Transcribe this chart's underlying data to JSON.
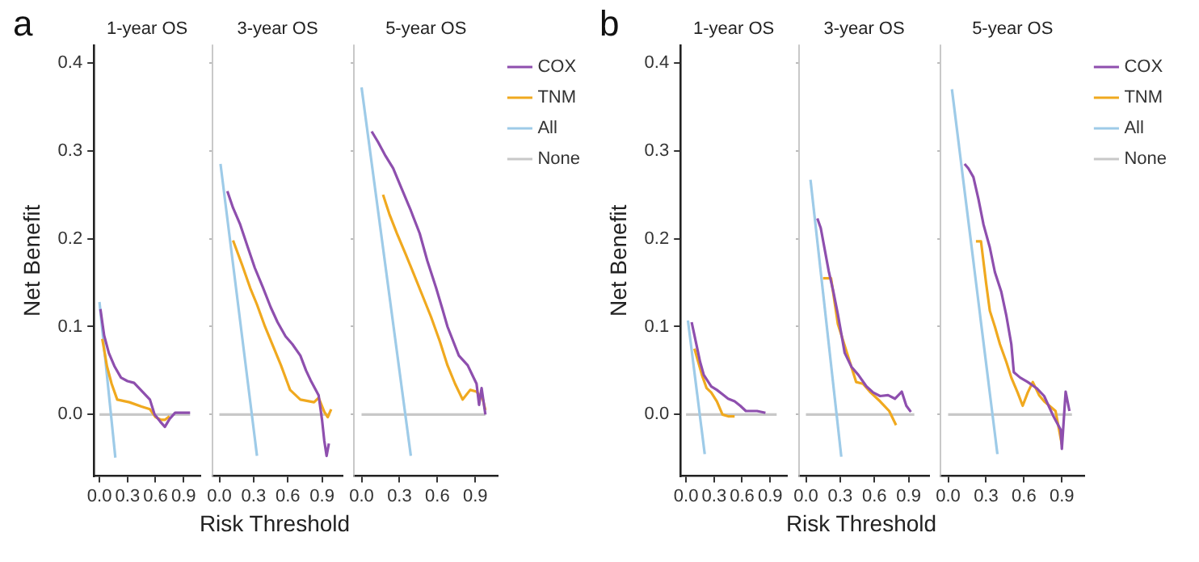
{
  "chart_data": [
    {
      "type": "line",
      "title": "1-year OS",
      "ylabel": "Net Benefit",
      "annotations": [
        "a"
      ],
      "xlim": [
        -0.06,
        1.08
      ],
      "ylim": [
        -0.07,
        0.42
      ],
      "xticks": [
        {
          "value": 0,
          "label": "0.0"
        },
        {
          "value": 0.3,
          "label": "0.3"
        },
        {
          "value": 0.6,
          "label": "0.6"
        },
        {
          "value": 0.9,
          "label": "0.9"
        }
      ],
      "yticks": [
        {
          "value": 0,
          "label": "0.0"
        },
        {
          "value": 0.1,
          "label": "0.1"
        },
        {
          "value": 0.2,
          "label": "0.2"
        },
        {
          "value": 0.3,
          "label": "0.3"
        },
        {
          "value": 0.4,
          "label": "0.4"
        }
      ],
      "grid": false,
      "legend": false,
      "series": [
        {
          "color": "#8e4fae",
          "x": [
            0.01,
            0.05,
            0.1,
            0.16,
            0.23,
            0.3,
            0.37,
            0.45,
            0.54,
            0.59,
            0.65,
            0.7,
            0.75,
            0.81,
            0.9,
            0.97
          ],
          "values": [
            0.12,
            0.09,
            0.07,
            0.055,
            0.042,
            0.038,
            0.036,
            0.027,
            0.017,
            0,
            -0.008,
            -0.014,
            -0.005,
            0.002,
            0.002,
            0.002
          ]
        },
        {
          "color": "#f0a91f",
          "x": [
            0.03,
            0.08,
            0.13,
            0.19,
            0.32,
            0.45,
            0.54,
            0.6,
            0.66,
            0.7,
            0.75
          ],
          "values": [
            0.086,
            0.055,
            0.035,
            0.017,
            0.014,
            0.009,
            0.006,
            -0.003,
            -0.006,
            -0.006,
            -0.002
          ]
        },
        {
          "color": "#9ecbe8",
          "x": [
            0,
            0.17
          ],
          "values": [
            0.128,
            -0.049
          ]
        },
        {
          "color": "#c8c8c8",
          "x": [
            0,
            0.97
          ],
          "values": [
            0,
            0
          ]
        }
      ]
    },
    {
      "type": "line",
      "title": "3-year OS",
      "xlabel": "Risk Threshold",
      "xlim": [
        -0.06,
        1.08
      ],
      "ylim": [
        -0.07,
        0.42
      ],
      "xticks": [
        {
          "value": 0,
          "label": "0.0"
        },
        {
          "value": 0.3,
          "label": "0.3"
        },
        {
          "value": 0.6,
          "label": "0.6"
        },
        {
          "value": 0.9,
          "label": "0.9"
        }
      ],
      "yticks": [
        0,
        0.1,
        0.2,
        0.3,
        0.4
      ],
      "grid": false,
      "legend": false,
      "tick_labels": "x",
      "series": [
        {
          "color": "#8e4fae",
          "x": [
            0.07,
            0.12,
            0.18,
            0.25,
            0.31,
            0.38,
            0.45,
            0.51,
            0.58,
            0.64,
            0.71,
            0.76,
            0.8,
            0.87,
            0.9,
            0.92,
            0.94,
            0.96
          ],
          "values": [
            0.254,
            0.235,
            0.217,
            0.19,
            0.167,
            0.145,
            0.122,
            0.105,
            0.089,
            0.08,
            0.067,
            0.05,
            0.039,
            0.022,
            -0.006,
            -0.03,
            -0.047,
            -0.033
          ]
        },
        {
          "color": "#f0a91f",
          "x": [
            0.12,
            0.2,
            0.27,
            0.33,
            0.4,
            0.47,
            0.54,
            0.6,
            0.62,
            0.71,
            0.83,
            0.87,
            0.92,
            0.95,
            0.98
          ],
          "values": [
            0.198,
            0.17,
            0.144,
            0.125,
            0.1,
            0.078,
            0.056,
            0.035,
            0.028,
            0.017,
            0.014,
            0.019,
            0.003,
            -0.003,
            0.006
          ]
        },
        {
          "color": "#9ecbe8",
          "x": [
            0.01,
            0.33
          ],
          "values": [
            0.285,
            -0.047
          ]
        },
        {
          "color": "#c8c8c8",
          "x": [
            0,
            0.97
          ],
          "values": [
            0,
            0
          ]
        }
      ]
    },
    {
      "type": "line",
      "title": "5-year OS",
      "xlim": [
        -0.06,
        1.08
      ],
      "ylim": [
        -0.07,
        0.42
      ],
      "xticks": [
        {
          "value": 0,
          "label": "0.0"
        },
        {
          "value": 0.3,
          "label": "0.3"
        },
        {
          "value": 0.6,
          "label": "0.6"
        },
        {
          "value": 0.9,
          "label": "0.9"
        }
      ],
      "yticks": [
        0,
        0.1,
        0.2,
        0.3,
        0.4
      ],
      "grid": false,
      "legend": "top right",
      "tick_labels": "x",
      "series": [
        {
          "name": "COX",
          "color": "#8e4fae",
          "x": [
            0.08,
            0.13,
            0.19,
            0.25,
            0.32,
            0.39,
            0.46,
            0.52,
            0.59,
            0.64,
            0.68,
            0.77,
            0.84,
            0.88,
            0.91,
            0.93,
            0.95,
            0.98
          ],
          "values": [
            0.322,
            0.31,
            0.294,
            0.28,
            0.256,
            0.232,
            0.206,
            0.175,
            0.144,
            0.12,
            0.1,
            0.067,
            0.056,
            0.044,
            0.035,
            0.011,
            0.03,
            0
          ]
        },
        {
          "name": "TNM",
          "color": "#f0a91f",
          "x": [
            0.17,
            0.22,
            0.28,
            0.35,
            0.41,
            0.48,
            0.55,
            0.62,
            0.68,
            0.74,
            0.8,
            0.86,
            0.91,
            0.96,
            0.98
          ],
          "values": [
            0.25,
            0.228,
            0.206,
            0.182,
            0.161,
            0.136,
            0.111,
            0.083,
            0.056,
            0.035,
            0.017,
            0.028,
            0.026,
            0.017,
            0.005
          ]
        },
        {
          "name": "All",
          "color": "#9ecbe8",
          "x": [
            0,
            0.39
          ],
          "values": [
            0.372,
            -0.047
          ]
        },
        {
          "name": "None",
          "color": "#c8c8c8",
          "x": [
            0,
            0.98
          ],
          "values": [
            0,
            0
          ]
        }
      ]
    },
    {
      "type": "line",
      "title": "1-year OS",
      "ylabel": "Net Benefit",
      "annotations": [
        "b"
      ],
      "xlim": [
        -0.06,
        1.08
      ],
      "ylim": [
        -0.07,
        0.42
      ],
      "xticks": [
        {
          "value": 0,
          "label": "0.0"
        },
        {
          "value": 0.3,
          "label": "0.3"
        },
        {
          "value": 0.6,
          "label": "0.6"
        },
        {
          "value": 0.9,
          "label": "0.9"
        }
      ],
      "yticks": [
        {
          "value": 0,
          "label": "0.0"
        },
        {
          "value": 0.1,
          "label": "0.1"
        },
        {
          "value": 0.2,
          "label": "0.2"
        },
        {
          "value": 0.3,
          "label": "0.3"
        },
        {
          "value": 0.4,
          "label": "0.4"
        }
      ],
      "grid": false,
      "legend": false,
      "series": [
        {
          "color": "#8e4fae",
          "x": [
            0.06,
            0.08,
            0.12,
            0.15,
            0.19,
            0.27,
            0.33,
            0.39,
            0.45,
            0.52,
            0.58,
            0.64,
            0.76,
            0.85
          ],
          "values": [
            0.105,
            0.095,
            0.075,
            0.06,
            0.045,
            0.032,
            0.028,
            0.023,
            0.018,
            0.015,
            0.01,
            0.004,
            0.004,
            0.002
          ]
        },
        {
          "color": "#f0a91f",
          "x": [
            0.09,
            0.13,
            0.17,
            0.22,
            0.27,
            0.33,
            0.39,
            0.45,
            0.52
          ],
          "values": [
            0.075,
            0.06,
            0.045,
            0.03,
            0.025,
            0.015,
            0,
            -0.002,
            -0.002
          ]
        },
        {
          "color": "#9ecbe8",
          "x": [
            0.02,
            0.2
          ],
          "values": [
            0.107,
            -0.045
          ]
        },
        {
          "color": "#c8c8c8",
          "x": [
            0,
            0.97
          ],
          "values": [
            0,
            0
          ]
        }
      ]
    },
    {
      "type": "line",
      "title": "3-year OS",
      "xlabel": "Risk Threshold",
      "xlim": [
        -0.06,
        1.08
      ],
      "ylim": [
        -0.07,
        0.42
      ],
      "xticks": [
        {
          "value": 0,
          "label": "0.0"
        },
        {
          "value": 0.3,
          "label": "0.3"
        },
        {
          "value": 0.6,
          "label": "0.6"
        },
        {
          "value": 0.9,
          "label": "0.9"
        }
      ],
      "yticks": [
        0,
        0.1,
        0.2,
        0.3,
        0.4
      ],
      "grid": false,
      "legend": false,
      "tick_labels": "x",
      "series": [
        {
          "color": "#8e4fae",
          "x": [
            0.1,
            0.13,
            0.2,
            0.24,
            0.28,
            0.34,
            0.4,
            0.46,
            0.53,
            0.59,
            0.65,
            0.72,
            0.78,
            0.84,
            0.88,
            0.92
          ],
          "values": [
            0.223,
            0.212,
            0.163,
            0.14,
            0.114,
            0.07,
            0.054,
            0.045,
            0.032,
            0.025,
            0.021,
            0.022,
            0.018,
            0.026,
            0.01,
            0.003
          ]
        },
        {
          "color": "#f0a91f",
          "x": [
            0.15,
            0.22,
            0.28,
            0.36,
            0.44,
            0.5,
            0.56,
            0.65,
            0.73,
            0.79
          ],
          "values": [
            0.155,
            0.155,
            0.103,
            0.07,
            0.037,
            0.035,
            0.026,
            0.015,
            0.004,
            -0.012
          ]
        },
        {
          "color": "#9ecbe8",
          "x": [
            0.04,
            0.31
          ],
          "values": [
            0.267,
            -0.048
          ]
        },
        {
          "color": "#c8c8c8",
          "x": [
            0,
            0.95
          ],
          "values": [
            0,
            0
          ]
        }
      ]
    },
    {
      "type": "line",
      "title": "5-year OS",
      "xlim": [
        -0.06,
        1.08
      ],
      "ylim": [
        -0.07,
        0.42
      ],
      "xticks": [
        {
          "value": 0,
          "label": "0.0"
        },
        {
          "value": 0.3,
          "label": "0.3"
        },
        {
          "value": 0.6,
          "label": "0.6"
        },
        {
          "value": 0.9,
          "label": "0.9"
        }
      ],
      "yticks": [
        0,
        0.1,
        0.2,
        0.3,
        0.4
      ],
      "grid": false,
      "legend": "top right",
      "tick_labels": "x",
      "series": [
        {
          "name": "COX",
          "color": "#8e4fae",
          "x": [
            0.13,
            0.16,
            0.2,
            0.24,
            0.28,
            0.33,
            0.37,
            0.42,
            0.46,
            0.5,
            0.52,
            0.57,
            0.63,
            0.7,
            0.76,
            0.83,
            0.89,
            0.9,
            0.93,
            0.96
          ],
          "values": [
            0.285,
            0.28,
            0.27,
            0.245,
            0.216,
            0.19,
            0.162,
            0.14,
            0.113,
            0.08,
            0.048,
            0.042,
            0.037,
            0.03,
            0.021,
            -0.001,
            -0.017,
            -0.039,
            0.026,
            0.004
          ]
        },
        {
          "name": "TNM",
          "color": "#f0a91f",
          "x": [
            0.22,
            0.26,
            0.3,
            0.33,
            0.37,
            0.41,
            0.46,
            0.5,
            0.55,
            0.59,
            0.63,
            0.67,
            0.72,
            0.76,
            0.85,
            0.9
          ],
          "values": [
            0.197,
            0.197,
            0.15,
            0.118,
            0.1,
            0.08,
            0.06,
            0.042,
            0.025,
            0.01,
            0.025,
            0.037,
            0.022,
            0.015,
            0.004,
            -0.034
          ]
        },
        {
          "name": "All",
          "color": "#9ecbe8",
          "x": [
            0.03,
            0.39
          ],
          "values": [
            0.37,
            -0.045
          ]
        },
        {
          "name": "None",
          "color": "#c8c8c8",
          "x": [
            0,
            0.98
          ],
          "values": [
            0,
            0
          ]
        }
      ]
    }
  ]
}
